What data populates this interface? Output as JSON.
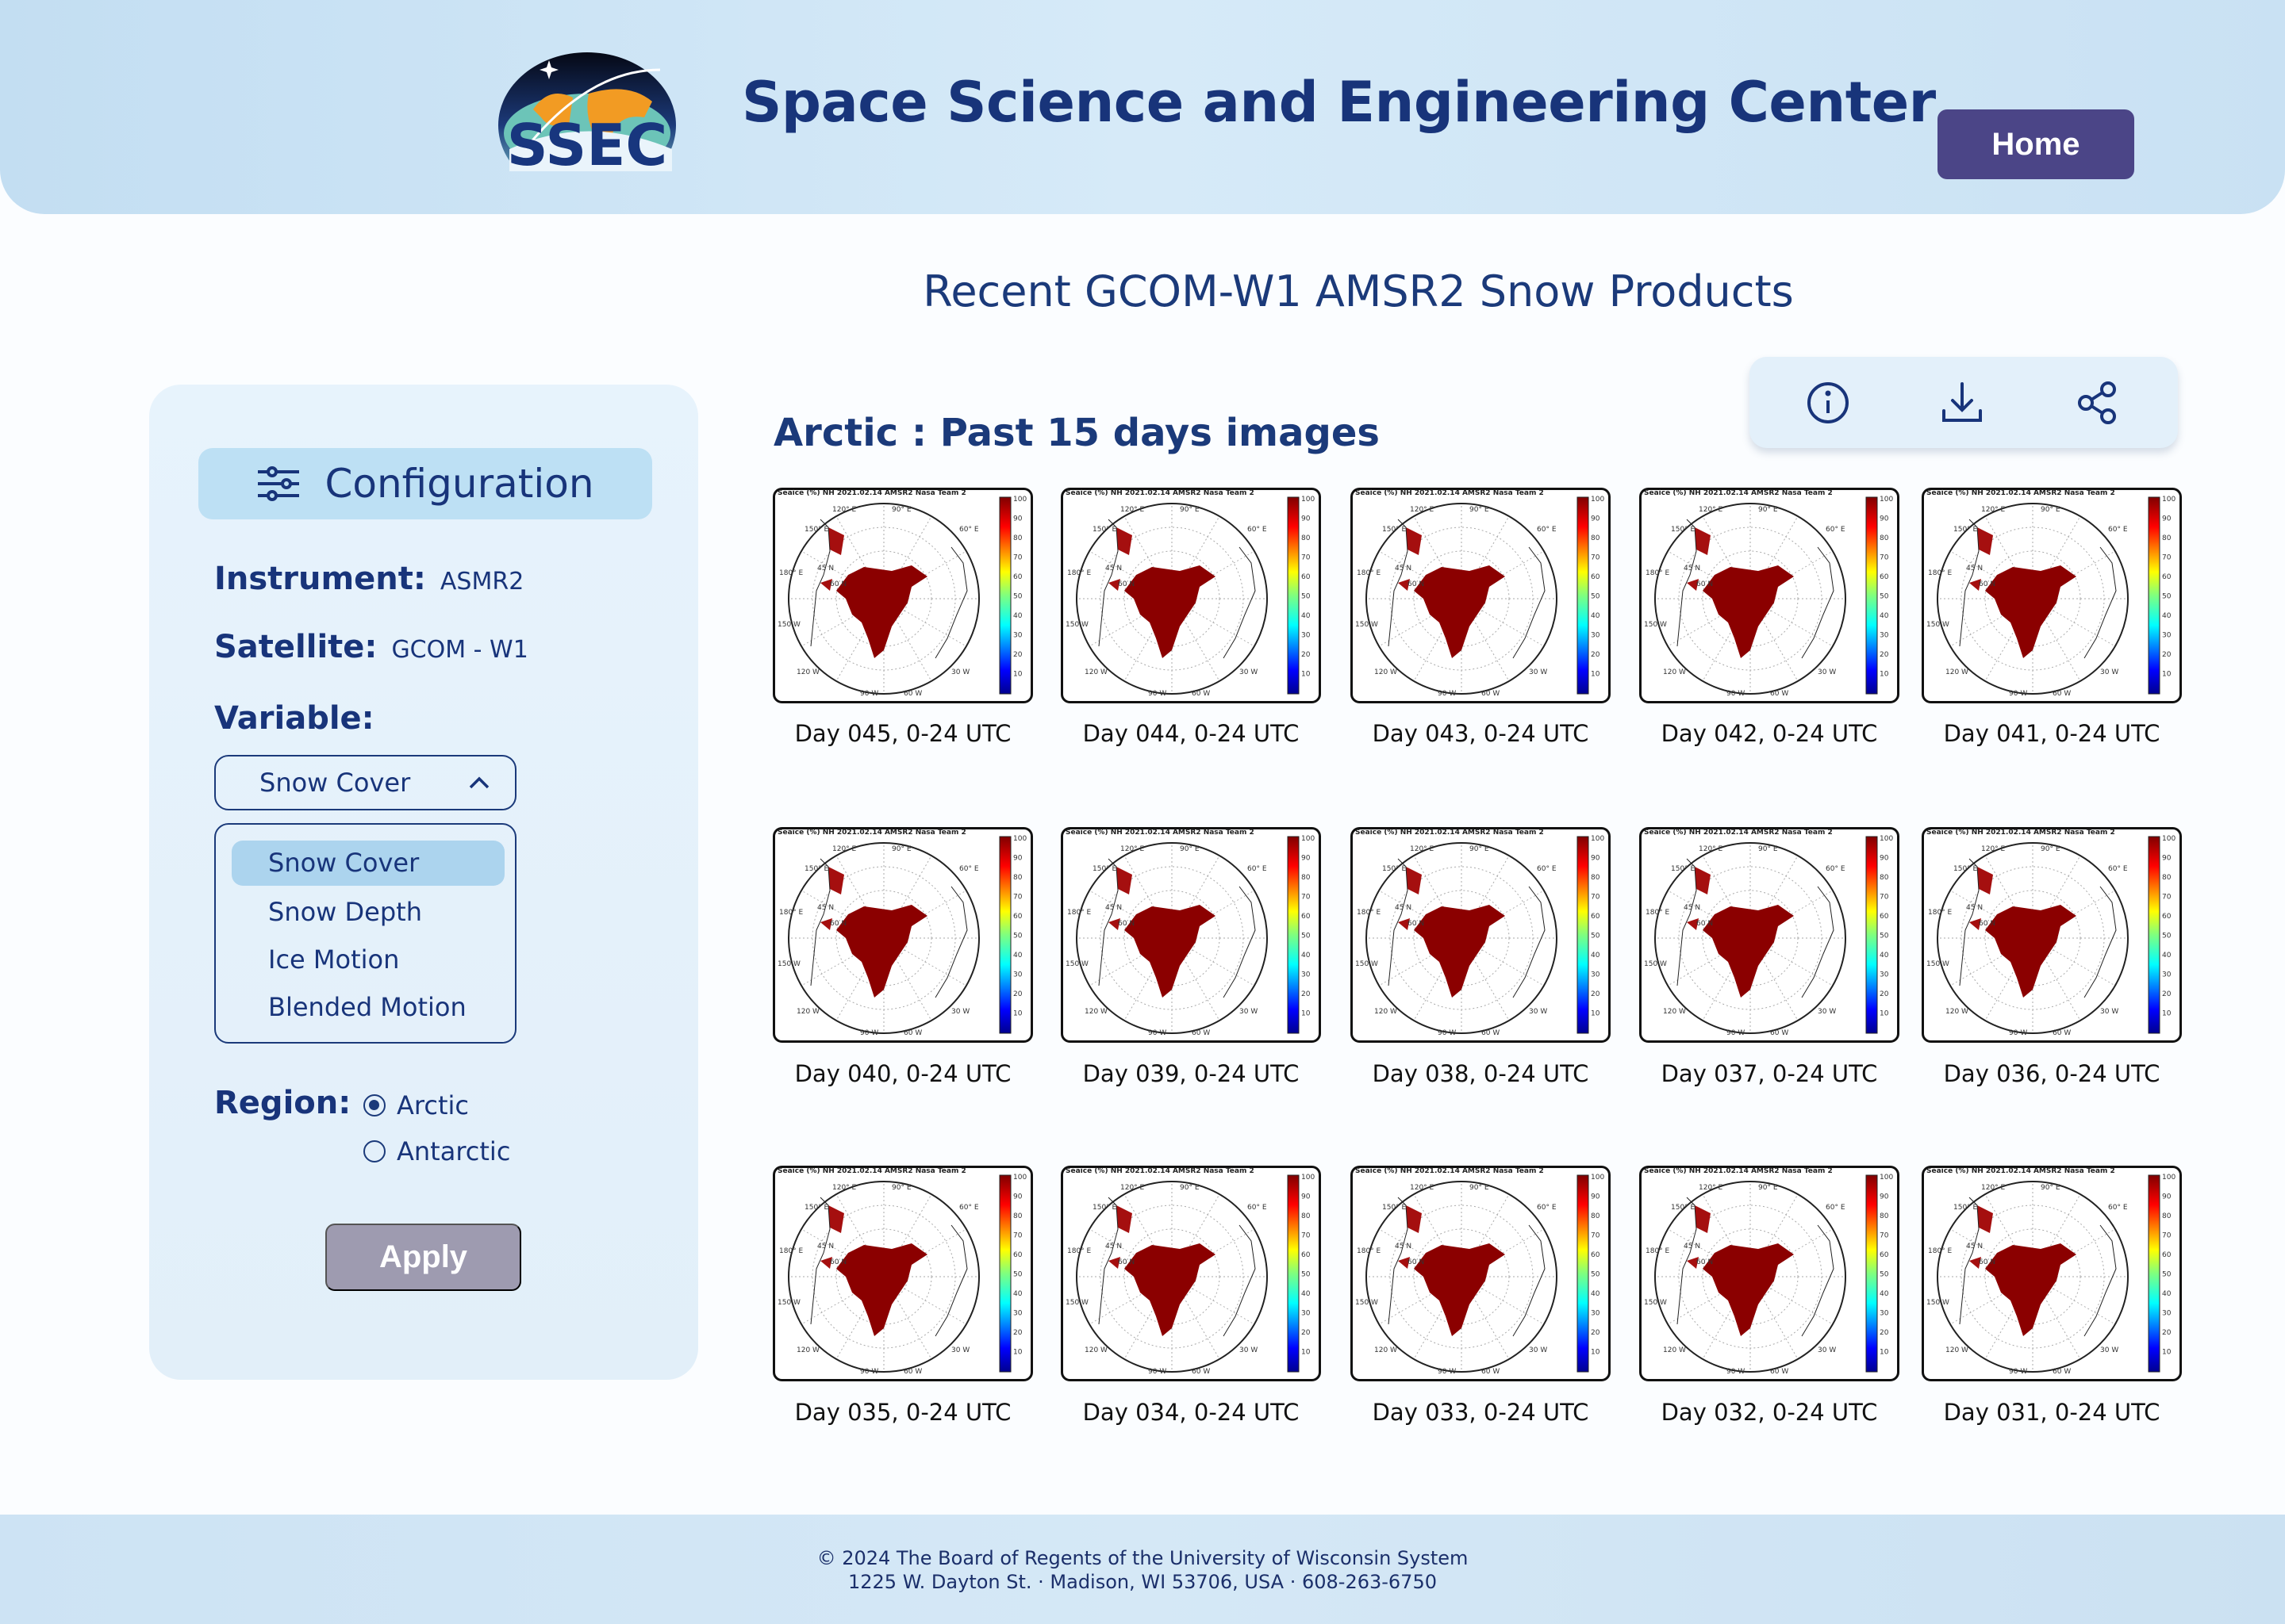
{
  "header": {
    "logo_text": "SSEC",
    "title": "Space Science and Engineering Center",
    "home_label": "Home"
  },
  "page_title": "Recent GCOM-W1 AMSR2 Snow Products",
  "config": {
    "title": "Configuration",
    "instrument_label": "Instrument:",
    "instrument_value": "ASMR2",
    "satellite_label": "Satellite:",
    "satellite_value": "GCOM - W1",
    "variable_label": "Variable:",
    "variable_selected": "Snow Cover",
    "variable_options": [
      "Snow Cover",
      "Snow Depth",
      "Ice Motion",
      "Blended Motion"
    ],
    "region_label": "Region:",
    "regions": [
      {
        "label": "Arctic",
        "checked": true
      },
      {
        "label": "Antarctic",
        "checked": false
      }
    ],
    "apply_label": "Apply"
  },
  "toolbar": {
    "icons": [
      "info-icon",
      "download-icon",
      "share-icon"
    ]
  },
  "section_title": "Arctic : Past 15 days images",
  "thumbnail": {
    "title": "Seaice (%) NH 2021.02.14 AMSR2 Nasa Team 2",
    "colorbar_ticks": [
      "100",
      "90",
      "80",
      "70",
      "60",
      "50",
      "40",
      "30",
      "20",
      "10"
    ],
    "lon_labels": [
      "120° E",
      "90° E",
      "60° E",
      "150° E",
      "180° E",
      "150 W",
      "120 W",
      "90 W",
      "60 W",
      "30 W"
    ],
    "lat_labels": [
      "45 N",
      "60 N"
    ]
  },
  "images": [
    "Day 045, 0-24 UTC",
    "Day 044, 0-24 UTC",
    "Day 043, 0-24 UTC",
    "Day 042, 0-24 UTC",
    "Day 041, 0-24 UTC",
    "Day 040, 0-24 UTC",
    "Day 039, 0-24 UTC",
    "Day 038, 0-24 UTC",
    "Day 037, 0-24 UTC",
    "Day 036, 0-24 UTC",
    "Day 035, 0-24 UTC",
    "Day 034, 0-24 UTC",
    "Day 033, 0-24 UTC",
    "Day 032, 0-24 UTC",
    "Day 031, 0-24 UTC"
  ],
  "footer": {
    "line1": "© 2024 The Board of Regents of the University of Wisconsin System",
    "line2": "1225 W. Dayton St. · Madison, WI 53706, USA · 608-263-6750"
  }
}
